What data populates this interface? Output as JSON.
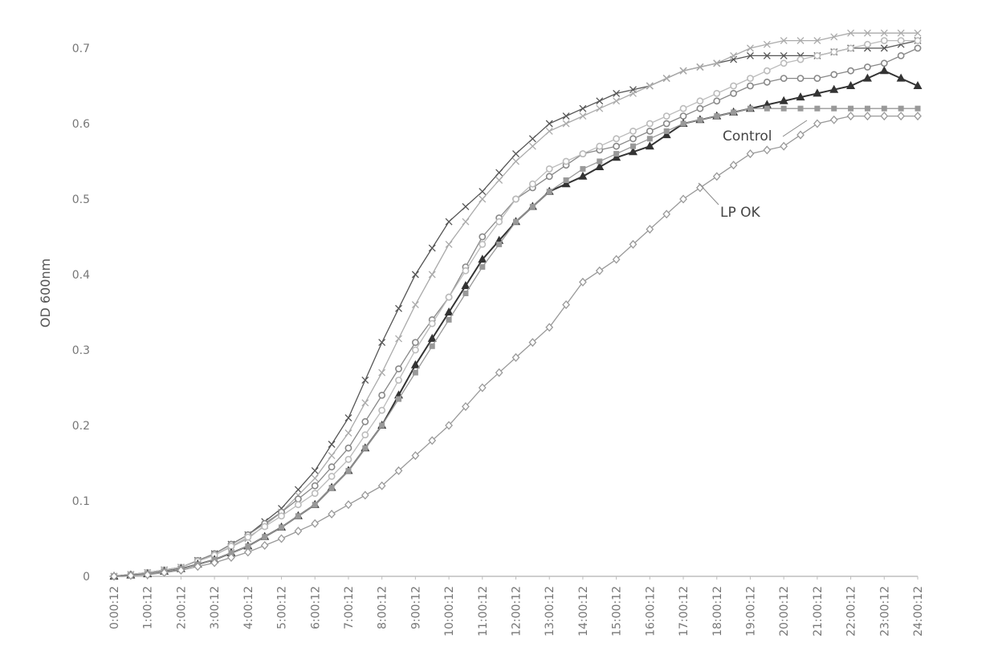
{
  "chart_data": {
    "type": "line",
    "title": "",
    "xlabel": "",
    "ylabel": "OD 600nm",
    "ylim": [
      0,
      0.7
    ],
    "yticks": [
      "0",
      "0.1",
      "0.2",
      "0.3",
      "0.4",
      "0.5",
      "0.6",
      "0.7"
    ],
    "grid": false,
    "legend": "none",
    "categories": [
      "0:00:12",
      "1:00:12",
      "2:00:12",
      "3:00:12",
      "4:00:12",
      "5:00:12",
      "6:00:12",
      "7:00:12",
      "8:00:12",
      "9:00:12",
      "10:00:12",
      "11:00:12",
      "12:00:12",
      "13:00:12",
      "14:00:12",
      "15:00:12",
      "16:00:12",
      "17:00:12",
      "18:00:12",
      "19:00:12",
      "20:00:12",
      "21:00:12",
      "22:00:12",
      "23:00:12",
      "24:00:12"
    ],
    "annotations": [
      {
        "text": "Control",
        "x": "18:00:12",
        "y": 0.6
      },
      {
        "text": "LP OK",
        "x": "18:00:12",
        "y": 0.49
      }
    ],
    "series": [
      {
        "marker": "x",
        "color": "#555555",
        "values": [
          0.0,
          0.005,
          0.012,
          0.03,
          0.055,
          0.09,
          0.14,
          0.21,
          0.31,
          0.4,
          0.47,
          0.51,
          0.56,
          0.6,
          0.62,
          0.64,
          0.65,
          0.67,
          0.68,
          0.69,
          0.69,
          0.69,
          0.7,
          0.7,
          0.71
        ]
      },
      {
        "marker": "x",
        "color": "#aaaaaa",
        "values": [
          0.0,
          0.005,
          0.012,
          0.028,
          0.05,
          0.085,
          0.13,
          0.19,
          0.27,
          0.36,
          0.44,
          0.5,
          0.55,
          0.59,
          0.61,
          0.63,
          0.65,
          0.67,
          0.68,
          0.7,
          0.71,
          0.71,
          0.72,
          0.72,
          0.72
        ]
      },
      {
        "marker": "circle",
        "color": "#888888",
        "values": [
          0.0,
          0.005,
          0.012,
          0.03,
          0.055,
          0.085,
          0.12,
          0.17,
          0.24,
          0.31,
          0.37,
          0.45,
          0.5,
          0.53,
          0.56,
          0.57,
          0.59,
          0.61,
          0.63,
          0.65,
          0.66,
          0.66,
          0.67,
          0.68,
          0.7
        ]
      },
      {
        "marker": "circle",
        "color": "#bbbbbb",
        "values": [
          0.0,
          0.005,
          0.012,
          0.028,
          0.052,
          0.08,
          0.11,
          0.155,
          0.22,
          0.3,
          0.37,
          0.44,
          0.5,
          0.54,
          0.56,
          0.58,
          0.6,
          0.62,
          0.64,
          0.66,
          0.68,
          0.69,
          0.7,
          0.71,
          0.71
        ]
      },
      {
        "marker": "triangle",
        "color": "#333333",
        "values": [
          0.0,
          0.003,
          0.01,
          0.022,
          0.04,
          0.065,
          0.095,
          0.14,
          0.2,
          0.28,
          0.35,
          0.42,
          0.47,
          0.51,
          0.53,
          0.555,
          0.57,
          0.6,
          0.61,
          0.62,
          0.63,
          0.64,
          0.65,
          0.67,
          0.65
        ]
      },
      {
        "marker": "square",
        "color": "#999999",
        "values": [
          0.0,
          0.003,
          0.01,
          0.022,
          0.04,
          0.065,
          0.095,
          0.14,
          0.2,
          0.27,
          0.34,
          0.41,
          0.47,
          0.51,
          0.54,
          0.56,
          0.58,
          0.6,
          0.61,
          0.62,
          0.62,
          0.62,
          0.62,
          0.62,
          0.62
        ]
      },
      {
        "marker": "diamond",
        "color": "#999999",
        "values": [
          0.0,
          0.002,
          0.008,
          0.018,
          0.032,
          0.05,
          0.07,
          0.095,
          0.12,
          0.16,
          0.2,
          0.25,
          0.29,
          0.33,
          0.39,
          0.42,
          0.46,
          0.5,
          0.53,
          0.56,
          0.57,
          0.6,
          0.61,
          0.61,
          0.61
        ]
      }
    ]
  }
}
